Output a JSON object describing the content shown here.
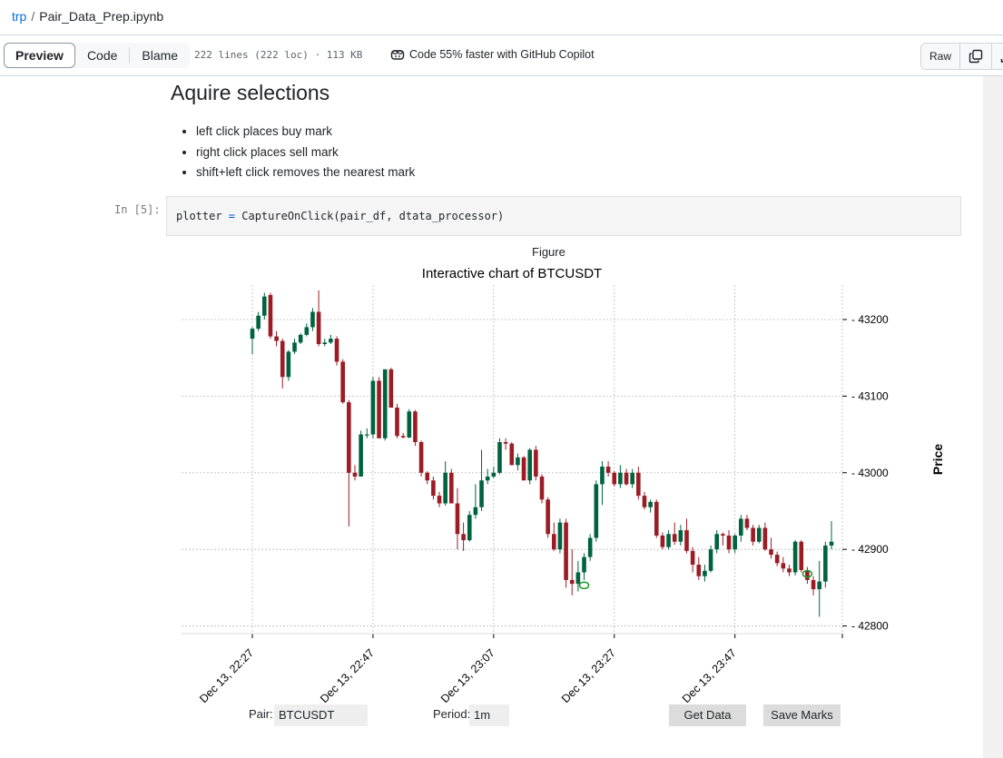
{
  "breadcrumb": {
    "repo": "trp",
    "separator": "/",
    "file": "Pair_Data_Prep.ipynb"
  },
  "toolbar": {
    "tabs": [
      {
        "label": "Preview",
        "active": true
      },
      {
        "label": "Code"
      },
      {
        "label": "Blame"
      }
    ],
    "meta": "222 lines (222 loc) · 113 KB",
    "copilot": "Code 55% faster with GitHub Copilot",
    "raw": "Raw",
    "icons": [
      "copilot-icon",
      "copy-icon",
      "download-icon"
    ]
  },
  "notebook": {
    "heading": "Aquire selections",
    "bullets": [
      "left click places buy mark",
      "right click places sell mark",
      "shift+left click removes the nearest mark"
    ],
    "prompt": "In [5]:",
    "code": {
      "lhs": "plotter ",
      "op": "=",
      "rhs": " CaptureOnClick(pair_df, dtata_processor)"
    },
    "figure_label": "Figure"
  },
  "widgets": {
    "pair_label": "Pair:",
    "pair_value": "BTCUSDT",
    "period_label": "Period:",
    "period_value": "1m",
    "get_data": "Get Data",
    "save_marks": "Save Marks"
  },
  "colors": {
    "up": "#006340",
    "down": "#9b1c24",
    "mark": "#1a9a2a"
  },
  "chart_data": {
    "type": "candlestick",
    "title": "Interactive chart of BTCUSDT",
    "ylabel": "Price",
    "ylim": [
      42790,
      43245
    ],
    "y_ticks": [
      42800,
      42900,
      43000,
      43100,
      43200
    ],
    "x_tick_labels": [
      "Dec 13, 22:27",
      "Dec 13, 22:47",
      "Dec 13, 23:07",
      "Dec 13, 23:27",
      "Dec 13, 23:47"
    ],
    "x_tick_index": [
      0,
      20,
      40,
      60,
      80
    ],
    "candles": [
      [
        43175,
        43190,
        43155,
        43188
      ],
      [
        43188,
        43210,
        43185,
        43205
      ],
      [
        43205,
        43235,
        43200,
        43230
      ],
      [
        43232,
        43235,
        43175,
        43178
      ],
      [
        43178,
        43185,
        43165,
        43172
      ],
      [
        43172,
        43175,
        43110,
        43125
      ],
      [
        43125,
        43160,
        43120,
        43158
      ],
      [
        43158,
        43175,
        43155,
        43170
      ],
      [
        43170,
        43182,
        43168,
        43180
      ],
      [
        43180,
        43195,
        43178,
        43190
      ],
      [
        43190,
        43215,
        43185,
        43210
      ],
      [
        43210,
        43238,
        43165,
        43168
      ],
      [
        43168,
        43175,
        43165,
        43170
      ],
      [
        43170,
        43180,
        43168,
        43175
      ],
      [
        43175,
        43178,
        43140,
        43145
      ],
      [
        43145,
        43148,
        43090,
        43092
      ],
      [
        43092,
        43095,
        42930,
        43000
      ],
      [
        43000,
        43010,
        42990,
        42995
      ],
      [
        42995,
        43055,
        42995,
        43050
      ],
      [
        43050,
        43058,
        43045,
        43050
      ],
      [
        43050,
        43125,
        43045,
        43120
      ],
      [
        43120,
        43125,
        43045,
        43045
      ],
      [
        43045,
        43135,
        43042,
        43135
      ],
      [
        43135,
        43137,
        43085,
        43085
      ],
      [
        43085,
        43090,
        43045,
        43048
      ],
      [
        43048,
        43052,
        43045,
        43046
      ],
      [
        43046,
        43083,
        43045,
        43080
      ],
      [
        43080,
        43082,
        43035,
        43040
      ],
      [
        43040,
        43042,
        42995,
        43000
      ],
      [
        43000,
        43002,
        42985,
        42990
      ],
      [
        42990,
        42995,
        42965,
        42970
      ],
      [
        42970,
        42975,
        42955,
        42960
      ],
      [
        42960,
        43015,
        42957,
        43000
      ],
      [
        43000,
        43005,
        42960,
        42960
      ],
      [
        42960,
        42980,
        42900,
        42920
      ],
      [
        42920,
        42935,
        42898,
        42912
      ],
      [
        42912,
        42950,
        42910,
        42945
      ],
      [
        42945,
        42985,
        42940,
        42955
      ],
      [
        42955,
        43030,
        42950,
        42990
      ],
      [
        42990,
        43005,
        42985,
        42995
      ],
      [
        42995,
        43008,
        42993,
        43000
      ],
      [
        43000,
        43045,
        42998,
        43040
      ],
      [
        43040,
        43045,
        43030,
        43038
      ],
      [
        43038,
        43040,
        43010,
        43010
      ],
      [
        43010,
        43025,
        43003,
        43020
      ],
      [
        43020,
        43022,
        42990,
        42990
      ],
      [
        42990,
        43032,
        42985,
        43030
      ],
      [
        43030,
        43035,
        42990,
        42995
      ],
      [
        42995,
        42998,
        42960,
        42965
      ],
      [
        42965,
        42968,
        42915,
        42920
      ],
      [
        42920,
        42935,
        42898,
        42900
      ],
      [
        42900,
        42940,
        42895,
        42935
      ],
      [
        42935,
        42940,
        42850,
        42860
      ],
      [
        42860,
        42900,
        42840,
        42855
      ],
      [
        42855,
        42885,
        42845,
        42870
      ],
      [
        42870,
        42895,
        42860,
        42890
      ],
      [
        42890,
        42920,
        42885,
        42915
      ],
      [
        42915,
        42990,
        42910,
        42985
      ],
      [
        42985,
        43015,
        42958,
        43008
      ],
      [
        43008,
        43015,
        42995,
        43000
      ],
      [
        43000,
        43002,
        42982,
        42985
      ],
      [
        42985,
        43010,
        42980,
        43000
      ],
      [
        43000,
        43005,
        42983,
        42985
      ],
      [
        42985,
        43005,
        42980,
        43000
      ],
      [
        43000,
        43008,
        42965,
        42970
      ],
      [
        42970,
        42975,
        42952,
        42955
      ],
      [
        42955,
        42965,
        42948,
        42962
      ],
      [
        42962,
        42965,
        42915,
        42918
      ],
      [
        42918,
        42922,
        42900,
        42903
      ],
      [
        42903,
        42925,
        42900,
        42920
      ],
      [
        42920,
        42935,
        42906,
        42910
      ],
      [
        42910,
        42932,
        42905,
        42925
      ],
      [
        42925,
        42940,
        42895,
        42898
      ],
      [
        42898,
        42903,
        42870,
        42880
      ],
      [
        42880,
        42890,
        42860,
        42865
      ],
      [
        42865,
        42880,
        42858,
        42872
      ],
      [
        42872,
        42905,
        42870,
        42900
      ],
      [
        42900,
        42925,
        42895,
        42920
      ],
      [
        42920,
        42922,
        42905,
        42918
      ],
      [
        42918,
        42925,
        42895,
        42900
      ],
      [
        42900,
        42920,
        42895,
        42918
      ],
      [
        42918,
        42945,
        42910,
        42940
      ],
      [
        42940,
        42945,
        42925,
        42928
      ],
      [
        42928,
        42932,
        42905,
        42910
      ],
      [
        42910,
        42932,
        42908,
        42928
      ],
      [
        42928,
        42935,
        42898,
        42900
      ],
      [
        42900,
        42915,
        42888,
        42893
      ],
      [
        42893,
        42897,
        42878,
        42882
      ],
      [
        42882,
        42890,
        42870,
        42875
      ],
      [
        42875,
        42880,
        42865,
        42870
      ],
      [
        42870,
        42912,
        42866,
        42910
      ],
      [
        42910,
        42912,
        42870,
        42873
      ],
      [
        42873,
        42877,
        42855,
        42860
      ],
      [
        42860,
        42865,
        42840,
        42848
      ],
      [
        42848,
        42885,
        42812,
        42858
      ],
      [
        42858,
        42910,
        42850,
        42905
      ],
      [
        42905,
        42937,
        42900,
        42910
      ]
    ],
    "marks": [
      {
        "index": 55,
        "price": 42853
      },
      {
        "index": 92,
        "price": 42868
      }
    ],
    "grid": true
  }
}
